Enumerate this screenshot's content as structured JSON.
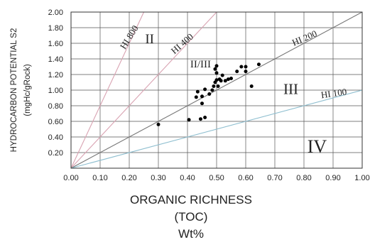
{
  "chart_data": {
    "type": "scatter",
    "xlabel_lines": [
      "ORGANIC RICHNESS",
      "(TOC)",
      "Wt%"
    ],
    "ylabel_lines": [
      "HYDROCARBON POTENTIAL S2",
      "(mgHc/gRock)"
    ],
    "xlim": [
      0.0,
      1.0
    ],
    "ylim": [
      0.0,
      2.0
    ],
    "x_ticks": [
      0.0,
      0.1,
      0.2,
      0.3,
      0.4,
      0.5,
      0.6,
      0.7,
      0.8,
      0.9,
      1.0
    ],
    "x_tick_labels": [
      "0.00",
      "0.10",
      "0.20",
      "0.30",
      "0.40",
      "0.50",
      "0.60",
      "0.70",
      "0.80",
      "0.90",
      "1.00"
    ],
    "y_ticks": [
      0.2,
      0.4,
      0.6,
      0.8,
      1.0,
      1.2,
      1.4,
      1.6,
      1.8,
      2.0
    ],
    "y_tick_labels": [
      "0.20",
      "0.40",
      "0.60",
      "0.80",
      "1.00",
      "1.20",
      "1.40",
      "1.60",
      "1.80",
      "2.00"
    ],
    "grid": true,
    "hi_lines": [
      {
        "label": "HI 800",
        "slope": 8.0,
        "color": "#d9a3b2"
      },
      {
        "label": "HI 400",
        "slope": 4.0,
        "color": "#d9a3b2"
      },
      {
        "label": "HI 200",
        "slope": 2.0,
        "color": "#777777"
      },
      {
        "label": "HI 100",
        "slope": 1.0,
        "color": "#8fbfd0"
      }
    ],
    "regions": [
      {
        "label": "II",
        "x": 0.27,
        "y": 1.6
      },
      {
        "label": "II/III",
        "x": 0.445,
        "y": 1.29
      },
      {
        "label": "III",
        "x": 0.755,
        "y": 0.95
      },
      {
        "label": "IV",
        "x": 0.845,
        "y": 0.2
      }
    ],
    "points": [
      {
        "x": 0.3,
        "y": 0.56
      },
      {
        "x": 0.405,
        "y": 0.62
      },
      {
        "x": 0.445,
        "y": 0.63
      },
      {
        "x": 0.46,
        "y": 0.65
      },
      {
        "x": 0.43,
        "y": 0.91
      },
      {
        "x": 0.435,
        "y": 0.98
      },
      {
        "x": 0.45,
        "y": 0.83
      },
      {
        "x": 0.45,
        "y": 0.92
      },
      {
        "x": 0.46,
        "y": 1.01
      },
      {
        "x": 0.475,
        "y": 0.95
      },
      {
        "x": 0.485,
        "y": 1.0
      },
      {
        "x": 0.49,
        "y": 1.05
      },
      {
        "x": 0.495,
        "y": 1.1
      },
      {
        "x": 0.495,
        "y": 1.27
      },
      {
        "x": 0.5,
        "y": 1.31
      },
      {
        "x": 0.5,
        "y": 1.22
      },
      {
        "x": 0.5,
        "y": 1.13
      },
      {
        "x": 0.505,
        "y": 1.05
      },
      {
        "x": 0.51,
        "y": 1.14
      },
      {
        "x": 0.515,
        "y": 1.12
      },
      {
        "x": 0.52,
        "y": 1.19
      },
      {
        "x": 0.53,
        "y": 1.12
      },
      {
        "x": 0.54,
        "y": 1.14
      },
      {
        "x": 0.55,
        "y": 1.15
      },
      {
        "x": 0.57,
        "y": 1.24
      },
      {
        "x": 0.585,
        "y": 1.3
      },
      {
        "x": 0.6,
        "y": 1.3
      },
      {
        "x": 0.6,
        "y": 1.24
      },
      {
        "x": 0.62,
        "y": 1.05
      },
      {
        "x": 0.645,
        "y": 1.33
      }
    ]
  }
}
